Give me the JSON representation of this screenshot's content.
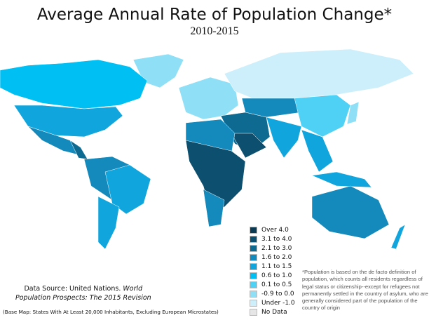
{
  "title": "Average Annual Rate of Population Change*",
  "subtitle": "2010-2015",
  "legend": [
    {
      "label": "Over 4.0",
      "color": "#0b3a52"
    },
    {
      "label": "3.1 to 4.0",
      "color": "#0d4f6e"
    },
    {
      "label": "2.1 to 3.0",
      "color": "#0f6a91"
    },
    {
      "label": "1.6 to 2.0",
      "color": "#1489bb"
    },
    {
      "label": "1.1 to 1.5",
      "color": "#10a5dd"
    },
    {
      "label": "0.6 to 1.0",
      "color": "#00bff3"
    },
    {
      "label": "0.1 to 0.5",
      "color": "#4fd0f5"
    },
    {
      "label": "-0.9 to 0.0",
      "color": "#8fe0f7"
    },
    {
      "label": "Under -1.0",
      "color": "#cdeffb"
    },
    {
      "label": "No Data",
      "color": "#e6e6e6"
    }
  ],
  "footnote": "*Population is based on the de facto definition of population, which counts all residents regardless of legal status or citizenship--except for refugees not permanently settled in the country of asylum, who are generally considered part of the population of the country of origin",
  "source": {
    "prefix": "Data Source: United Nations.",
    "italic1": "World",
    "italic2": "Population Prospects: The 2015 Revision"
  },
  "base_map": "(Base Map: States With At Least 20,000 Inhabitants, Excluding European Microstates)"
}
